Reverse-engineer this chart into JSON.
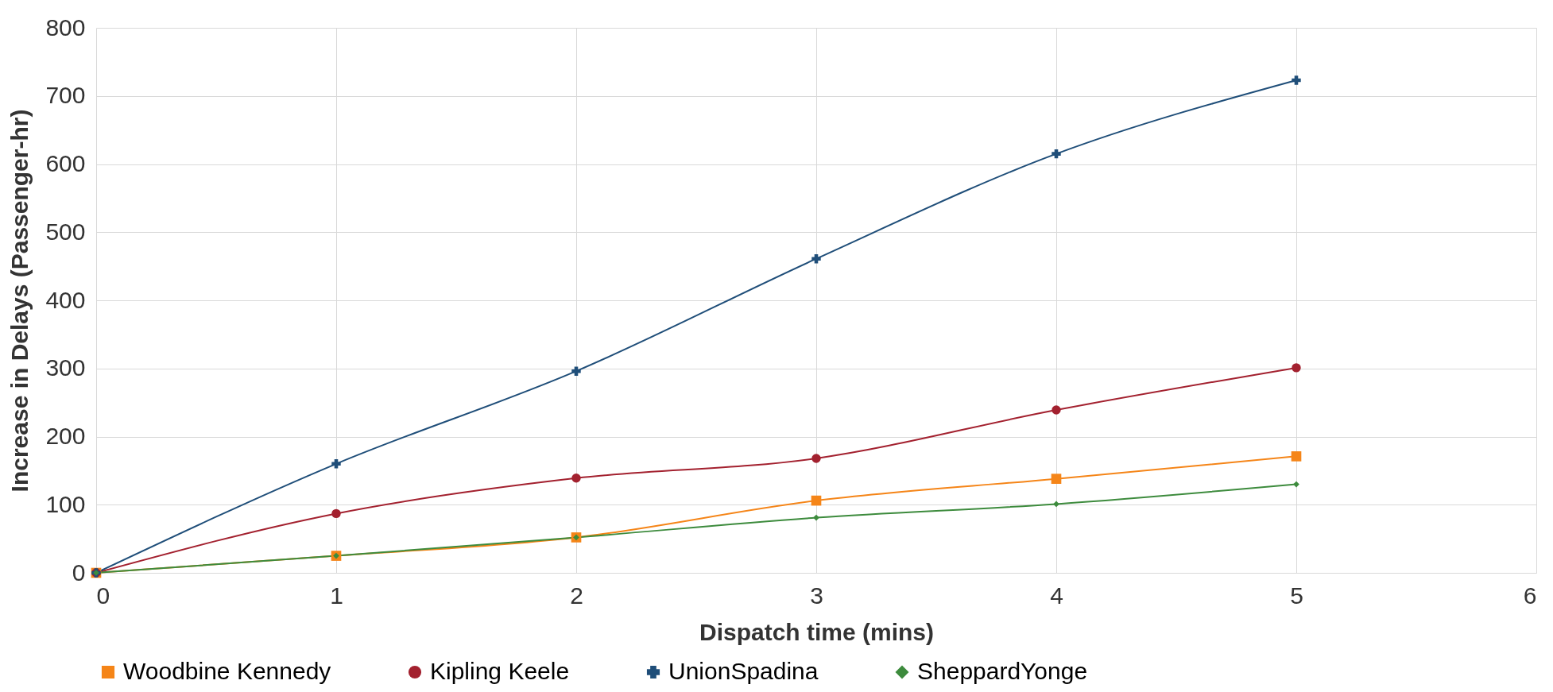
{
  "chart_data": {
    "type": "line",
    "xlabel": "Dispatch time (mins)",
    "ylabel": "Increase in Delays (Passenger-hr)",
    "x": [
      0,
      1,
      2,
      3,
      4,
      5
    ],
    "xlim": [
      0,
      6
    ],
    "xticks": [
      0,
      1,
      2,
      3,
      4,
      5,
      6
    ],
    "ylim": [
      0,
      800
    ],
    "yticks": [
      0,
      100,
      200,
      300,
      400,
      500,
      600,
      700,
      800
    ],
    "grid": true,
    "legend": "bottom",
    "series": [
      {
        "name": "Woodbine Kennedy",
        "color": "#f58518",
        "marker": "square",
        "values": [
          0,
          25,
          52,
          106,
          138,
          171
        ]
      },
      {
        "name": "Kipling Keele",
        "color": "#a3212f",
        "marker": "circle",
        "values": [
          0,
          87,
          139,
          168,
          239,
          301
        ]
      },
      {
        "name": "UnionSpadina",
        "color": "#1f4e79",
        "marker": "cross",
        "values": [
          0,
          160,
          296,
          461,
          615,
          723
        ]
      },
      {
        "name": "SheppardYonge",
        "color": "#3d8b3d",
        "marker": "diamond",
        "values": [
          0,
          25,
          52,
          81,
          101,
          130
        ]
      }
    ]
  }
}
